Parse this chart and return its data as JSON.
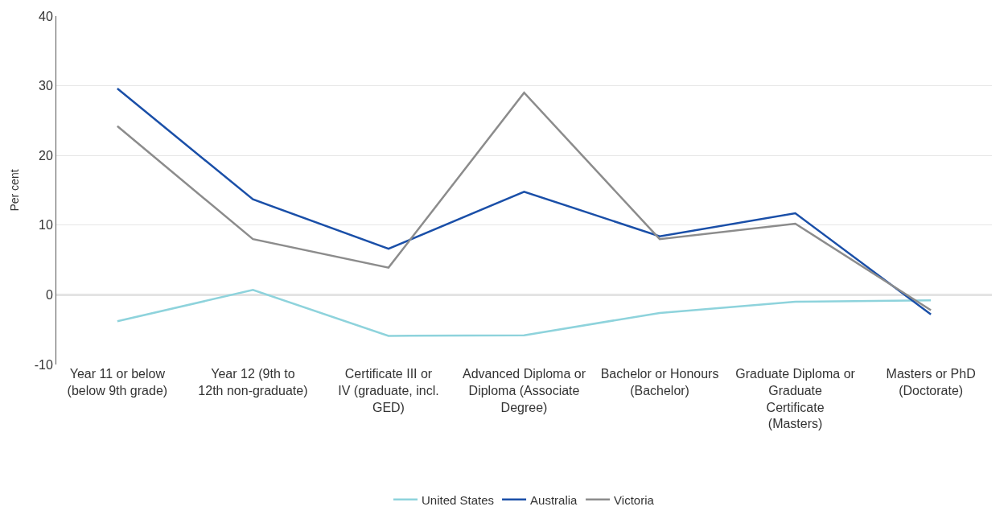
{
  "chart_data": {
    "type": "line",
    "ylabel": "Per cent",
    "categories": [
      "Year 11 or below (below 9th grade)",
      "Year 12 (9th to 12th non-graduate)",
      "Certificate III or IV (graduate, incl. GED)",
      "Advanced Diploma or Diploma (Associate Degree)",
      "Bachelor or Honours (Bachelor)",
      "Graduate Diploma or Graduate Certificate (Masters)",
      "Masters or PhD (Doctorate)"
    ],
    "series": [
      {
        "name": "United States",
        "color": "#8ed3dc",
        "values": [
          -3.8,
          0.7,
          -5.9,
          -5.8,
          -2.6,
          -1.0,
          -0.8
        ]
      },
      {
        "name": "Australia",
        "color": "#1a4fa8",
        "values": [
          29.6,
          13.7,
          6.6,
          14.8,
          8.4,
          11.7,
          -2.8
        ]
      },
      {
        "name": "Victoria",
        "color": "#8c8c8c",
        "values": [
          24.2,
          8.0,
          3.9,
          29.0,
          8.0,
          10.2,
          -2.2
        ]
      }
    ],
    "ylim": [
      -10,
      40
    ],
    "yticks": [
      -10,
      0,
      10,
      20,
      30,
      40
    ],
    "grid": "y",
    "legend": "bottom",
    "marker": "none",
    "line_style": "solid",
    "ref_lines": [
      {
        "axis": "y",
        "value": 0,
        "color": "#8c8c8c"
      }
    ]
  }
}
